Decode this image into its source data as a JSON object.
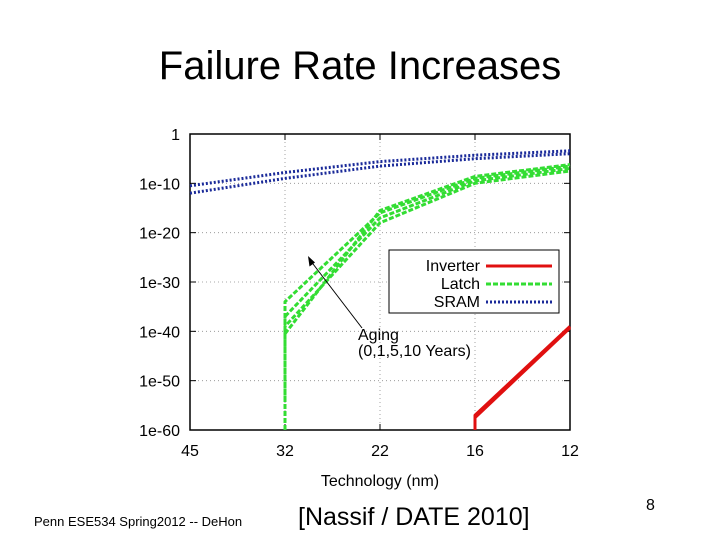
{
  "slide": {
    "title": "Failure Rate Increases",
    "footer_left": "Penn ESE534 Spring2012 -- DeHon",
    "citation": "[Nassif / DATE 2010]",
    "page_number": "8"
  },
  "chart_data": {
    "type": "line",
    "title": "",
    "xlabel": "Technology (nm)",
    "ylabel": "",
    "x_categories": [
      "45",
      "32",
      "22",
      "16",
      "12"
    ],
    "y_scale": "log10",
    "ylim_exponents": [
      -60,
      0
    ],
    "y_tick_labels": [
      "1",
      "1e-10",
      "1e-20",
      "1e-30",
      "1e-40",
      "1e-50",
      "1e-60"
    ],
    "y_tick_exponents": [
      0,
      -10,
      -20,
      -30,
      -40,
      -50,
      -60
    ],
    "legend_position": "right-middle",
    "legend": [
      "Inverter",
      "Latch",
      "SRAM"
    ],
    "annotation": {
      "line1": "Aging",
      "line2": "(0,1,5,10 Years)"
    },
    "series": [
      {
        "name": "Inverter",
        "color": "#e01010",
        "dash": "solid",
        "curves": [
          [
            [
              "16",
              -60
            ],
            [
              "16",
              -57
            ],
            [
              "12",
              -39
            ]
          ],
          [
            [
              "16",
              -57.5
            ],
            [
              "12",
              -39.3
            ]
          ]
        ]
      },
      {
        "name": "Latch",
        "color": "#33dd33",
        "dash": "dashed",
        "curves": [
          [
            [
              "32",
              -60
            ],
            [
              "32",
              -34
            ],
            [
              "22",
              -16
            ],
            [
              "16",
              -9
            ],
            [
              "12",
              -6.5
            ]
          ],
          [
            [
              "32",
              -54
            ],
            [
              "32",
              -37
            ],
            [
              "22",
              -17
            ],
            [
              "16",
              -9.5
            ],
            [
              "12",
              -7
            ]
          ],
          [
            [
              "32",
              -44
            ],
            [
              "32",
              -39
            ],
            [
              "22",
              -18
            ],
            [
              "16",
              -10
            ],
            [
              "12",
              -7.5
            ]
          ],
          [
            [
              "32",
              -40.5
            ],
            [
              "22",
              -15.5
            ],
            [
              "16",
              -8.6
            ],
            [
              "12",
              -6.2
            ]
          ]
        ]
      },
      {
        "name": "SRAM",
        "color": "#1a2a99",
        "dash": "dotted",
        "curves": [
          [
            [
              "45",
              -10.5
            ],
            [
              "32",
              -7.8
            ],
            [
              "22",
              -5.6
            ],
            [
              "16",
              -4.3
            ],
            [
              "12",
              -3.4
            ]
          ],
          [
            [
              "45",
              -12
            ],
            [
              "32",
              -9
            ],
            [
              "22",
              -6.5
            ],
            [
              "16",
              -5
            ],
            [
              "12",
              -4
            ]
          ]
        ]
      }
    ]
  }
}
